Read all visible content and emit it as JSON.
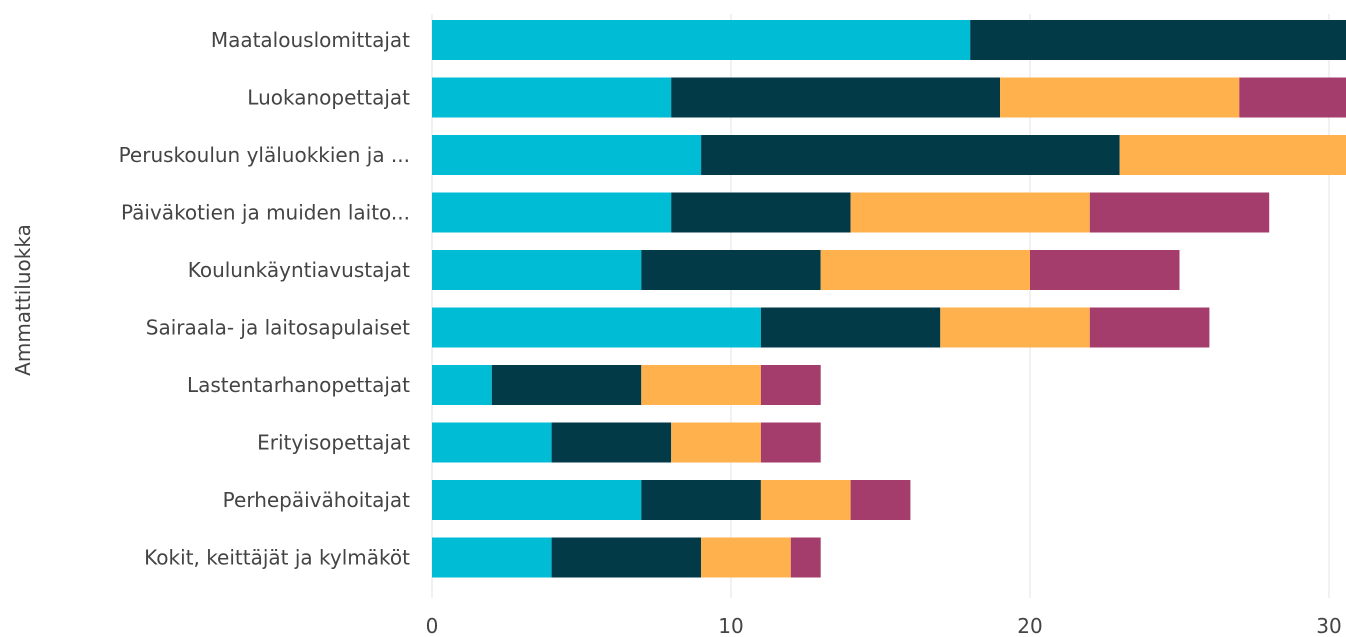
{
  "chart_data": {
    "type": "bar",
    "orientation": "horizontal",
    "stacked": true,
    "ylabel": "Ammattiluokka",
    "xlim": [
      0,
      30
    ],
    "xticks": [
      0,
      10,
      20,
      30
    ],
    "grid": true,
    "categories": [
      "Maatalouslomittajat",
      "Luokanopettajat",
      "Peruskoulun yläluokkien ja ...",
      "Päiväkotien ja muiden laito...",
      "Koulunkäyntiavustajat",
      "Sairaala- ja laitosapulaiset",
      "Lastentarhanopettajat",
      "Erityisopettajat",
      "Perhepäivähoitajat",
      "Kokit, keittäjät ja kylmäköt"
    ],
    "series": [
      {
        "color": "#00bcd4",
        "values": [
          18,
          8,
          9,
          8,
          7,
          11,
          2,
          4,
          7,
          4
        ]
      },
      {
        "color": "#033a48",
        "values": [
          13,
          11,
          14,
          6,
          6,
          6,
          5,
          4,
          4,
          5
        ]
      },
      {
        "color": "#ffb14e",
        "values": [
          0,
          8,
          8,
          8,
          7,
          5,
          4,
          3,
          3,
          3
        ]
      },
      {
        "color": "#a43d6c",
        "values": [
          0,
          4,
          0,
          6,
          5,
          4,
          2,
          2,
          2,
          1
        ]
      }
    ]
  }
}
